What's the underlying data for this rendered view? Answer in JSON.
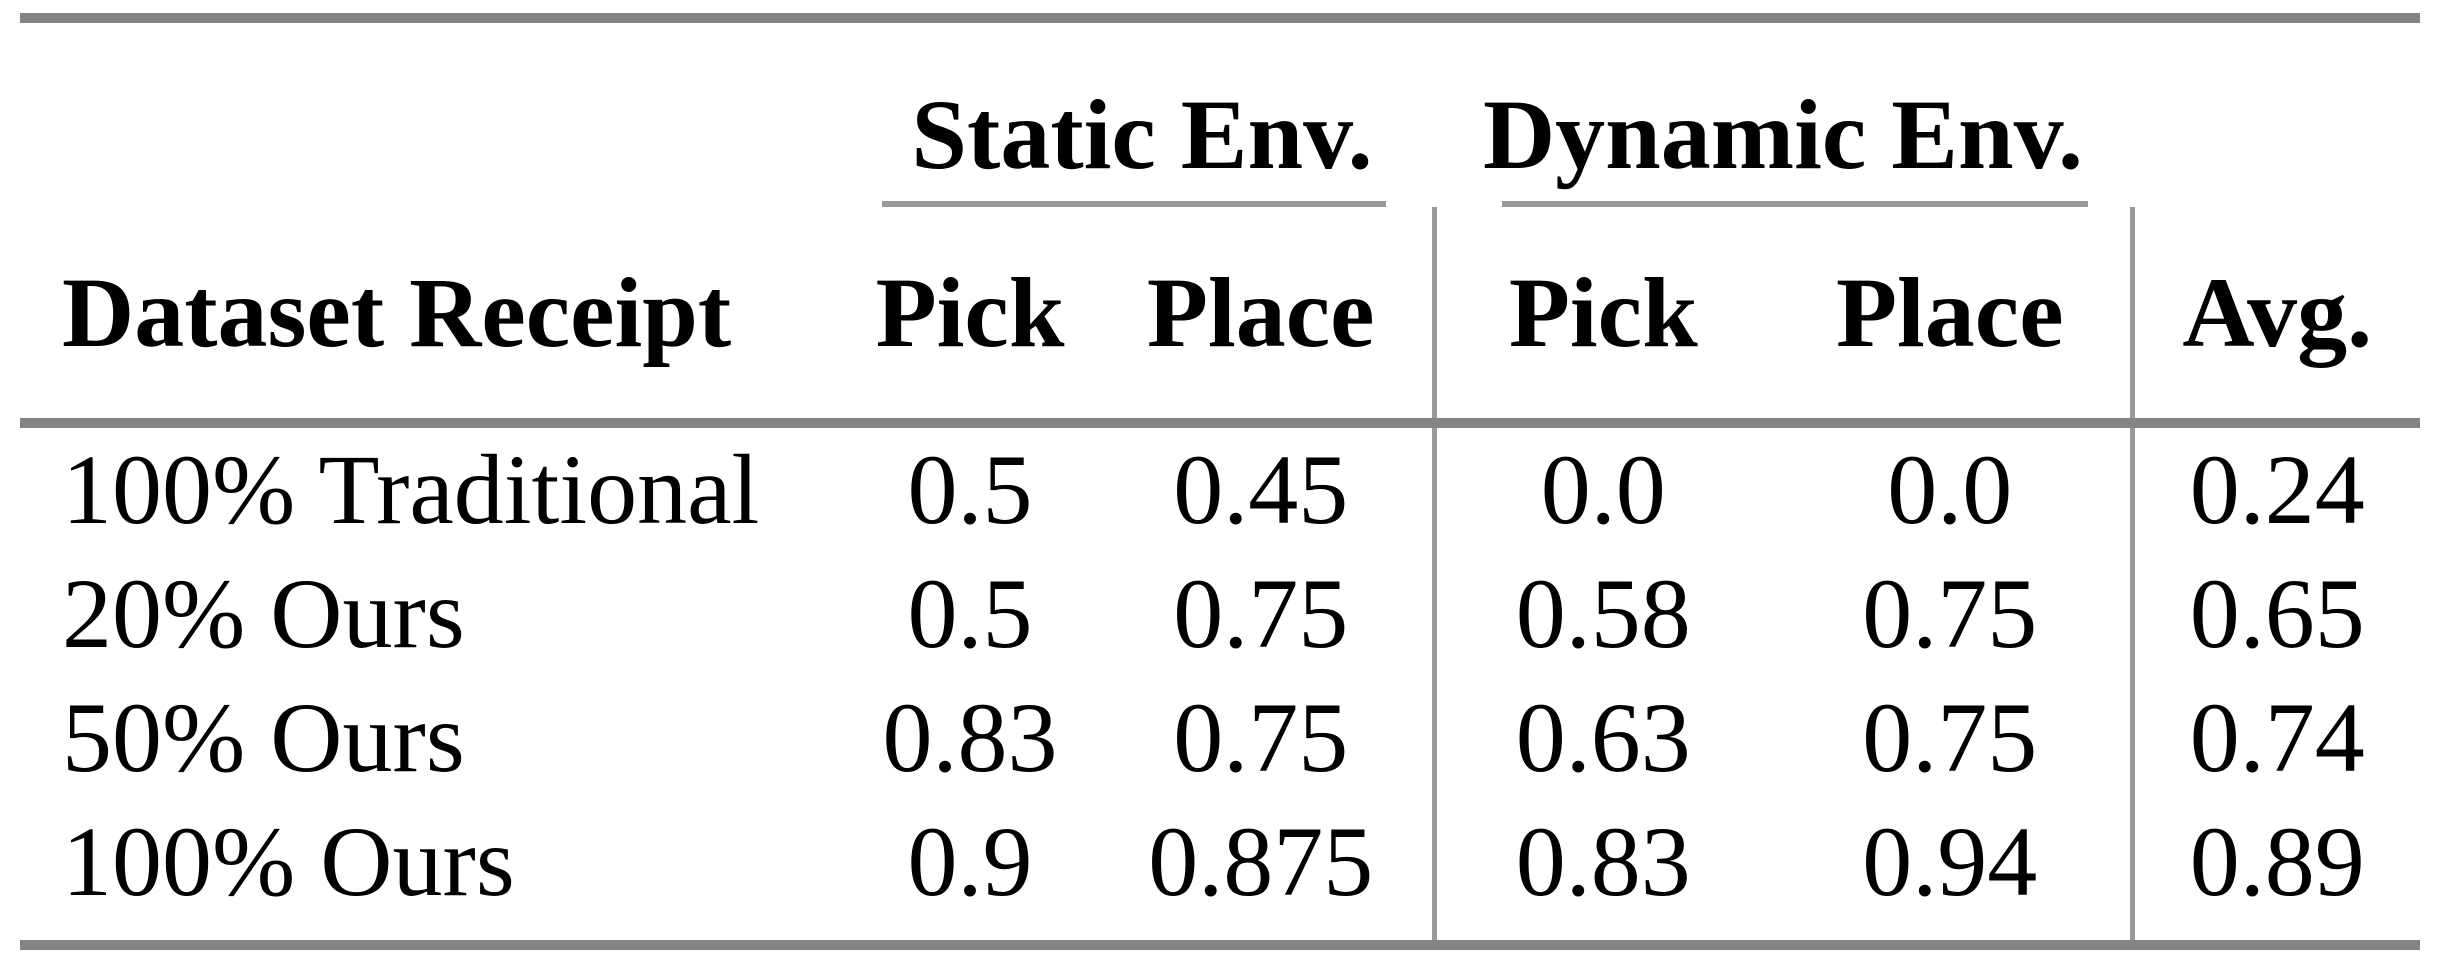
{
  "table": {
    "group_headers": {
      "static": "Static Env.",
      "dynamic": "Dynamic Env."
    },
    "column_headers": {
      "dataset": "Dataset Receipt",
      "static_pick": "Pick",
      "static_place": "Place",
      "dynamic_pick": "Pick",
      "dynamic_place": "Place",
      "avg": "Avg."
    },
    "rows": [
      [
        "100% Traditional",
        "0.5",
        "0.45",
        "0.0",
        "0.0",
        "0.24"
      ],
      [
        "20% Ours",
        "0.5",
        "0.75",
        "0.58",
        "0.75",
        "0.65"
      ],
      [
        "50% Ours",
        "0.83",
        "0.75",
        "0.63",
        "0.75",
        "0.74"
      ],
      [
        "100% Ours",
        "0.9",
        "0.875",
        "0.83",
        "0.94",
        "0.89"
      ]
    ],
    "colors": {
      "thick_rule": "#848484",
      "thin_rule": "#9a9a9a",
      "text": "#000000",
      "background": "#ffffff"
    }
  }
}
